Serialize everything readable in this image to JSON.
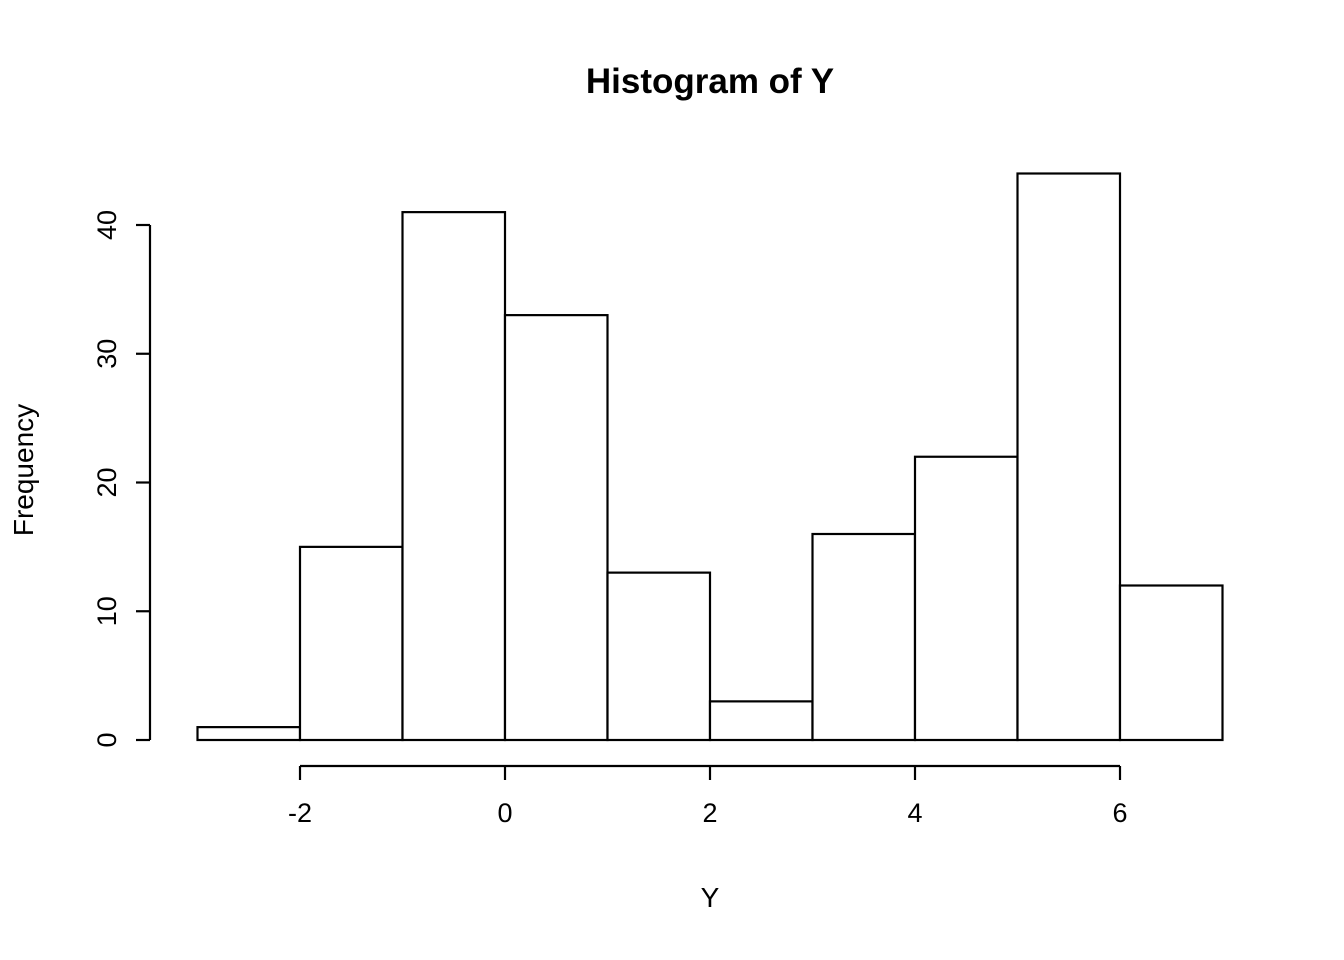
{
  "chart_data": {
    "type": "bar",
    "subtype": "histogram",
    "title": "Histogram of Y",
    "xlabel": "Y",
    "ylabel": "Frequency",
    "breaks": [
      -3,
      -2,
      -1,
      0,
      1,
      2,
      3,
      4,
      5,
      6,
      7
    ],
    "counts": [
      1,
      15,
      41,
      33,
      13,
      3,
      16,
      22,
      44,
      12
    ],
    "x_ticks": [
      -2,
      0,
      2,
      4,
      6
    ],
    "y_ticks": [
      0,
      10,
      20,
      30,
      40
    ],
    "xlim": [
      -3,
      7
    ],
    "ylim": [
      0,
      44
    ],
    "bar_fill": "#ffffff",
    "bar_stroke": "#000000",
    "axis_color": "#000000",
    "background": "#ffffff",
    "grid": false,
    "legend": "none"
  }
}
